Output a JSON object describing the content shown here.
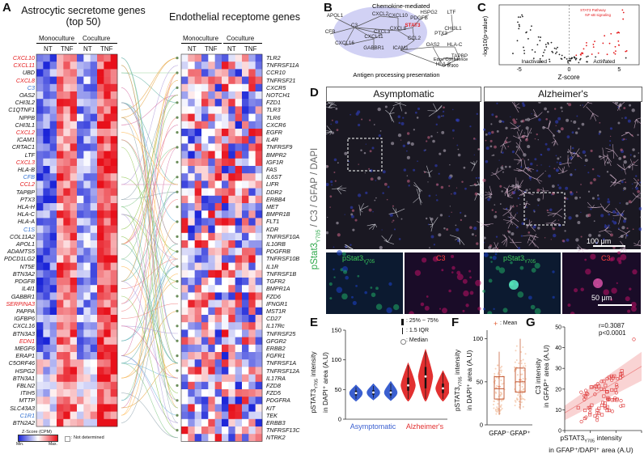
{
  "panelA": {
    "label": "A",
    "title_left_line1": "Astrocytic secretome genes",
    "title_left_line2": "(top 50)",
    "title_right": "Endothelial receptome genes",
    "group_mono": "Monoculture",
    "group_co": "Coculture",
    "cond_nt": "NT",
    "cond_tnf": "TNF",
    "legend_title": "Z-Score (CPM)",
    "legend_min": "Min.",
    "legend_max": "Max.",
    "legend_nd": ": Not determined",
    "colors": {
      "red": "#e41a1c",
      "blue": "#2f6fd1",
      "black": "#111111"
    },
    "secretome": [
      {
        "g": "CXCL10",
        "c": "red"
      },
      {
        "g": "CXCL11",
        "c": "red"
      },
      {
        "g": "UBD",
        "c": "black"
      },
      {
        "g": "CXCL8",
        "c": "red"
      },
      {
        "g": "C3",
        "c": "blue"
      },
      {
        "g": "OAS2",
        "c": "black"
      },
      {
        "g": "CHI3L2",
        "c": "black"
      },
      {
        "g": "C1QTNF1",
        "c": "black"
      },
      {
        "g": "NPPB",
        "c": "black"
      },
      {
        "g": "CHI3L1",
        "c": "black"
      },
      {
        "g": "CXCL2",
        "c": "red"
      },
      {
        "g": "ICAM1",
        "c": "black"
      },
      {
        "g": "CRTAC1",
        "c": "black"
      },
      {
        "g": "LTF",
        "c": "black"
      },
      {
        "g": "CXCL3",
        "c": "red"
      },
      {
        "g": "HLA-B",
        "c": "black"
      },
      {
        "g": "CFB",
        "c": "blue"
      },
      {
        "g": "CCL2",
        "c": "red"
      },
      {
        "g": "TAPBP",
        "c": "black"
      },
      {
        "g": "PTX3",
        "c": "black"
      },
      {
        "g": "HLA-H",
        "c": "black"
      },
      {
        "g": "HLA-C",
        "c": "black"
      },
      {
        "g": "HLA-A",
        "c": "black"
      },
      {
        "g": "C1S",
        "c": "blue"
      },
      {
        "g": "COL11A2",
        "c": "black"
      },
      {
        "g": "APOL1",
        "c": "black"
      },
      {
        "g": "ADAMTS5",
        "c": "black"
      },
      {
        "g": "PDCD1LG2",
        "c": "black"
      },
      {
        "g": "NT5E",
        "c": "black"
      },
      {
        "g": "BTN3A2",
        "c": "black"
      },
      {
        "g": "PDGFB",
        "c": "black"
      },
      {
        "g": "IL4I1",
        "c": "black"
      },
      {
        "g": "GABBR1",
        "c": "black"
      },
      {
        "g": "SERPINA3",
        "c": "red"
      },
      {
        "g": "PAPPA",
        "c": "black"
      },
      {
        "g": "IGFBP6",
        "c": "black"
      },
      {
        "g": "CXCL16",
        "c": "black"
      },
      {
        "g": "BTN3A3",
        "c": "black"
      },
      {
        "g": "EDN1",
        "c": "red"
      },
      {
        "g": "MEGF6",
        "c": "black"
      },
      {
        "g": "ERAP1",
        "c": "black"
      },
      {
        "g": "C5ORF46",
        "c": "black"
      },
      {
        "g": "HSPG2",
        "c": "black"
      },
      {
        "g": "BTN3A1",
        "c": "black"
      },
      {
        "g": "FBLN2",
        "c": "black"
      },
      {
        "g": "ITIH5",
        "c": "black"
      },
      {
        "g": "MTTP",
        "c": "black"
      },
      {
        "g": "SLC43A3",
        "c": "black"
      },
      {
        "g": "C1R1",
        "c": "blue"
      },
      {
        "g": "BTN2A2",
        "c": "black"
      }
    ],
    "receptome": [
      "TLR2",
      "TNFRSF11A",
      "CCR10",
      "TNFRSF21",
      "CXCR5",
      "NOTCH1",
      "FZD1",
      "TLR3",
      "TLR6",
      "CXCR6",
      "EGFR",
      "IL4R",
      "TNFRSF9",
      "BMPR2",
      "IGF1R",
      "FAS",
      "IL6ST",
      "LIFR",
      "DDR2",
      "ERBB4",
      "MET",
      "BMPR1B",
      "FLT1",
      "KDR",
      "TNFRSF10A",
      "IL10RB",
      "PDGFRB",
      "TNFRSF10B",
      "IL1R",
      "TNFRSF1B",
      "TGFR2",
      "BMPR1A",
      "FZD6",
      "IFNGR1",
      "MST1R",
      "CD27",
      "IL17Rc",
      "TNFRSF25",
      "GFGR2",
      "ERBB2",
      "FGFR1",
      "TNFRSF1A",
      "TNFRSF12A",
      "IL17RA",
      "FZD8",
      "FZD5",
      "PDGFRA",
      "KIT",
      "TEK",
      "ERBB3",
      "TNFRSF13C",
      "NTRK2"
    ]
  },
  "panelB": {
    "label": "B",
    "cluster1": "Chemokine-mediated",
    "cluster2": "Antigen processing presentation",
    "legend": "Edge Confidence",
    "legend_value": "> 0.900",
    "nodes": [
      "APOL1",
      "CXCL2",
      "CXCL10",
      "CFB",
      "C3",
      "CXCL3",
      "CXCL11",
      "CXCL8",
      "CXCL16",
      "GABBR1",
      "STAT3",
      "HSPG2",
      "PDGFB",
      "LTF",
      "CCL2",
      "CHI3L1",
      "PTX3",
      "ICAM1",
      "OAS2",
      "HLA-C",
      "TAPBP",
      "HLA-B"
    ]
  },
  "panelC": {
    "label": "C",
    "ylabel": "-log10(p-value)",
    "xlabel": "Z-score",
    "inactivated": "Inactivated",
    "activated": "Activated",
    "ann1": "STAT3 Pathway",
    "ann2": "NF-κB signaling",
    "x_ticks": [
      "-5",
      "0",
      "5"
    ]
  },
  "panelD": {
    "label": "D",
    "group1": "Asymptomatic",
    "group2": "Alzheimer's",
    "ylabel_green": "pStat3",
    "ylabel_sub": "Y705",
    "ylabel_rest": "/ C3 / GFAP / DAPI",
    "scale1": "100 μm",
    "scale2": "50 μm",
    "inset_green": "pStat3",
    "inset_sub": "Y705",
    "inset_red": "C3"
  },
  "panelE": {
    "label": "E",
    "legend_box": ": 25% ~ 75%",
    "legend_iqr": ": 1.5 IQR",
    "legend_median": ": Median",
    "ylabel_l1": "pSTAT3",
    "ylabel_sub": "Y705",
    "ylabel_l1b": " intensity",
    "ylabel_l2": "in DAPI⁺ area (A.U)",
    "group1": "Asymptomatic",
    "group2": "Alzheimer's",
    "y_ticks": [
      "0",
      "50",
      "100",
      "150"
    ],
    "ylim": [
      0,
      150
    ],
    "violins": [
      {
        "group": "Asymptomatic",
        "median": 44,
        "q1": 40,
        "q3": 48,
        "min": 30,
        "max": 58
      },
      {
        "group": "Asymptomatic",
        "median": 45,
        "q1": 41,
        "q3": 49,
        "min": 32,
        "max": 60
      },
      {
        "group": "Asymptomatic",
        "median": 45,
        "q1": 40,
        "q3": 49,
        "min": 31,
        "max": 64
      },
      {
        "group": "Alzheimer's",
        "median": 57,
        "q1": 48,
        "q3": 70,
        "min": 30,
        "max": 95
      },
      {
        "group": "Alzheimer's",
        "median": 72,
        "q1": 52,
        "q3": 88,
        "min": 30,
        "max": 118
      },
      {
        "group": "Alzheimer's",
        "median": 52,
        "q1": 44,
        "q3": 60,
        "min": 30,
        "max": 82
      }
    ]
  },
  "panelF": {
    "label": "F",
    "legend_mean": ": Mean",
    "ylabel_l1": "pSTAT3",
    "ylabel_sub": "Y705",
    "ylabel_l1b": " intensity",
    "ylabel_l2": "in DAPI⁺ area (A.U)",
    "categories": [
      "GFAP⁻",
      "GFAP⁺"
    ],
    "y_ticks": [
      "0",
      "50",
      "100"
    ],
    "box": [
      {
        "name": "GFAP⁻",
        "median": 42,
        "q1": 30,
        "q3": 56,
        "min": 12,
        "max": 85,
        "mean": 44
      },
      {
        "name": "GFAP⁺",
        "median": 50,
        "q1": 38,
        "q3": 66,
        "min": 18,
        "max": 100,
        "mean": 52
      }
    ]
  },
  "panelG": {
    "label": "G",
    "stat_r": "r=0.3087",
    "stat_p": "p<0.0001",
    "ylabel_l1": "C3 intensity",
    "ylabel_l2": "in GFAP⁺ area (A.U)",
    "xlabel_l1": "pSTAT3",
    "xlabel_sub": "Y705",
    "xlabel_l1b": " intensity",
    "xlabel_l2": "in GFAP⁺/DAPI⁺ area (A.U)",
    "x_ticks": [
      "0",
      "10",
      "20",
      "30"
    ],
    "y_ticks": [
      "0",
      "10",
      "20",
      "30",
      "40",
      "50"
    ],
    "xlim": [
      0,
      30
    ],
    "ylim": [
      0,
      50
    ]
  }
}
